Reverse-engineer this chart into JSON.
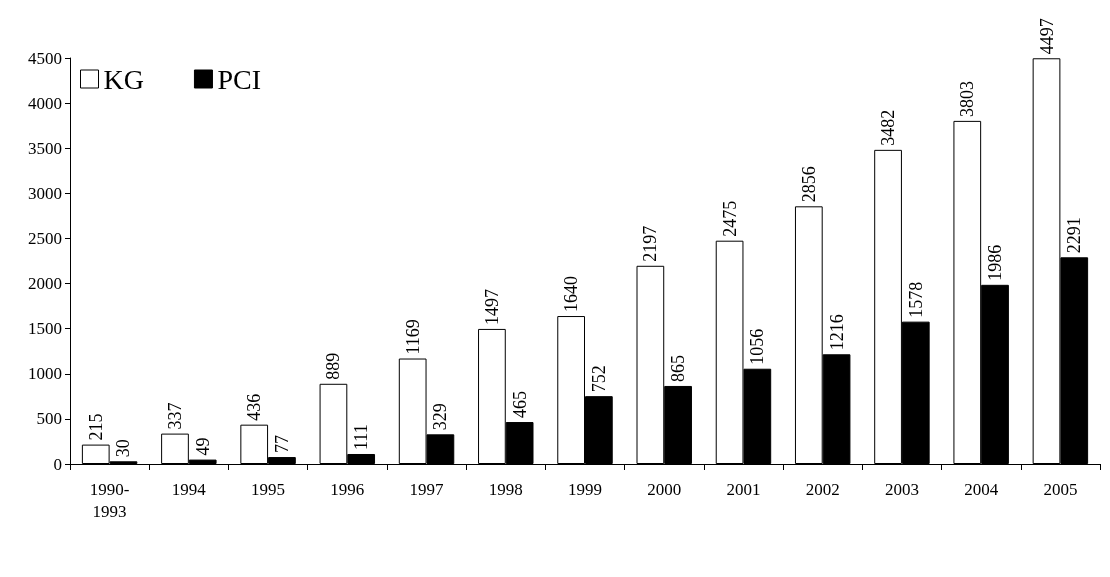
{
  "chart_data": {
    "type": "bar",
    "categories": [
      "1990-1993",
      "1994",
      "1995",
      "1996",
      "1997",
      "1998",
      "1999",
      "2000",
      "2001",
      "2002",
      "2003",
      "2004",
      "2005"
    ],
    "series": [
      {
        "name": "KG",
        "color": "#ffffff",
        "values": [
          215,
          337,
          436,
          889,
          1169,
          1497,
          1640,
          2197,
          2475,
          2856,
          3482,
          3803,
          4497
        ]
      },
      {
        "name": "PCI",
        "color": "#000000",
        "values": [
          30,
          49,
          77,
          111,
          329,
          465,
          752,
          865,
          1056,
          1216,
          1578,
          1986,
          2291
        ]
      }
    ],
    "ylim": [
      0,
      4500
    ],
    "yticks": [
      0,
      500,
      1000,
      1500,
      2000,
      2500,
      3000,
      3500,
      4000,
      4500
    ],
    "grid": false,
    "legend": "top left",
    "data_labels": true
  }
}
